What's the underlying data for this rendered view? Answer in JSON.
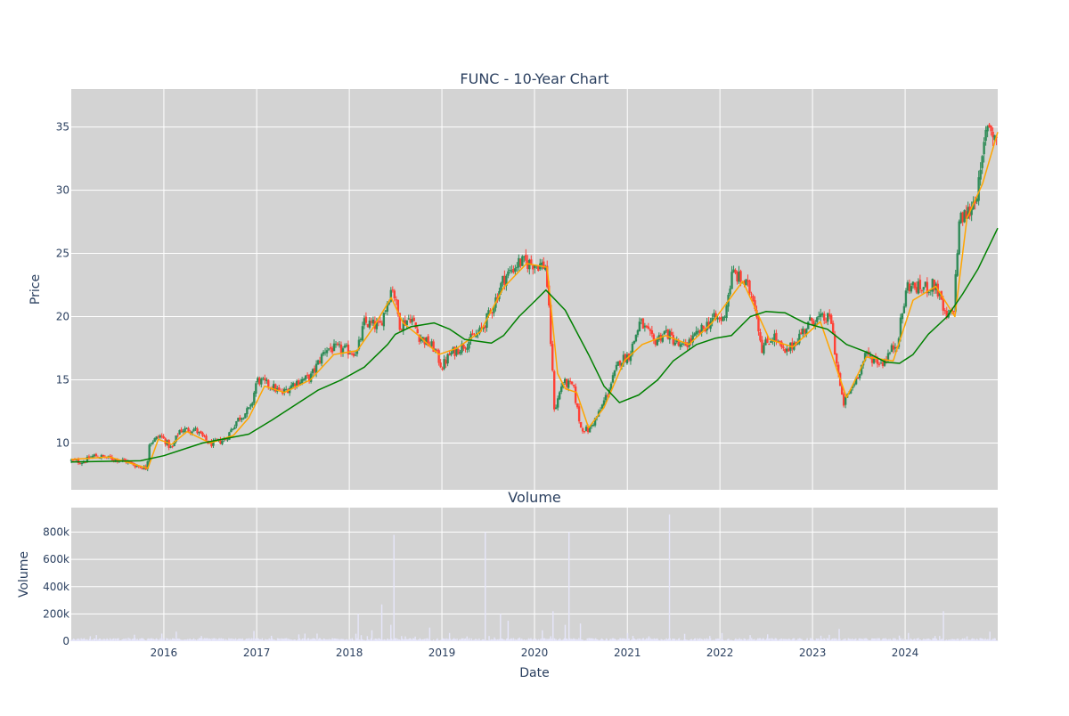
{
  "chart_data": [
    {
      "type": "candlestick",
      "title": "FUNC - 10-Year Chart",
      "xlabel": "",
      "ylabel": "Price",
      "xlim": [
        "2015-01-01",
        "2024-12-31"
      ],
      "ylim": [
        6.3,
        38.0
      ],
      "y_ticks": [
        10,
        15,
        20,
        25,
        30,
        35
      ],
      "x_ticks": [
        {
          "date": "2016-01-01",
          "label": "2016"
        },
        {
          "date": "2017-01-01",
          "label": "2017"
        },
        {
          "date": "2018-01-01",
          "label": "2018"
        },
        {
          "date": "2019-01-01",
          "label": "2019"
        },
        {
          "date": "2020-01-01",
          "label": "2020"
        },
        {
          "date": "2021-01-01",
          "label": "2021"
        },
        {
          "date": "2022-01-01",
          "label": "2022"
        },
        {
          "date": "2023-01-01",
          "label": "2023"
        },
        {
          "date": "2024-01-01",
          "label": "2024"
        }
      ],
      "grid": true,
      "legend": "none",
      "price_anchors": [
        [
          "2015-01-01",
          8.6
        ],
        [
          "2015-02-15",
          8.5
        ],
        [
          "2015-04-01",
          9.0
        ],
        [
          "2015-06-01",
          8.8
        ],
        [
          "2015-08-01",
          8.6
        ],
        [
          "2015-09-15",
          8.2
        ],
        [
          "2015-10-25",
          8.0
        ],
        [
          "2015-11-05",
          10.0
        ],
        [
          "2015-12-20",
          10.6
        ],
        [
          "2016-02-01",
          9.5
        ],
        [
          "2016-03-01",
          11.0
        ],
        [
          "2016-05-01",
          11.1
        ],
        [
          "2016-07-01",
          9.9
        ],
        [
          "2016-09-01",
          10.3
        ],
        [
          "2016-10-15",
          11.8
        ],
        [
          "2016-12-10",
          12.8
        ],
        [
          "2017-01-01",
          15.0
        ],
        [
          "2017-03-01",
          14.5
        ],
        [
          "2017-04-10",
          13.9
        ],
        [
          "2017-06-01",
          14.8
        ],
        [
          "2017-08-01",
          15.2
        ],
        [
          "2017-10-01",
          17.5
        ],
        [
          "2017-12-01",
          17.4
        ],
        [
          "2018-02-01",
          17.2
        ],
        [
          "2018-03-01",
          19.5
        ],
        [
          "2018-05-01",
          19.2
        ],
        [
          "2018-06-20",
          22.5
        ],
        [
          "2018-07-20",
          19.3
        ],
        [
          "2018-09-01",
          20.0
        ],
        [
          "2018-10-01",
          18.5
        ],
        [
          "2018-12-01",
          17.5
        ],
        [
          "2019-01-01",
          16.0
        ],
        [
          "2019-02-01",
          17.0
        ],
        [
          "2019-04-01",
          17.8
        ],
        [
          "2019-06-01",
          18.8
        ],
        [
          "2019-07-15",
          20.5
        ],
        [
          "2019-09-01",
          23.0
        ],
        [
          "2019-11-01",
          24.3
        ],
        [
          "2020-01-01",
          24.2
        ],
        [
          "2020-02-15",
          24.0
        ],
        [
          "2020-03-01",
          19.5
        ],
        [
          "2020-03-20",
          12.5
        ],
        [
          "2020-04-20",
          14.8
        ],
        [
          "2020-06-01",
          14.5
        ],
        [
          "2020-07-01",
          11.2
        ],
        [
          "2020-08-01",
          11.0
        ],
        [
          "2020-09-15",
          12.5
        ],
        [
          "2020-10-25",
          14.5
        ],
        [
          "2020-12-01",
          16.5
        ],
        [
          "2021-01-10",
          17.0
        ],
        [
          "2021-02-20",
          19.6
        ],
        [
          "2021-04-15",
          18.0
        ],
        [
          "2021-06-01",
          18.8
        ],
        [
          "2021-08-01",
          17.5
        ],
        [
          "2021-10-01",
          18.5
        ],
        [
          "2021-12-01",
          19.8
        ],
        [
          "2022-01-15",
          19.8
        ],
        [
          "2022-02-20",
          23.5
        ],
        [
          "2022-04-15",
          22.5
        ],
        [
          "2022-05-15",
          21.5
        ],
        [
          "2022-06-15",
          17.5
        ],
        [
          "2022-08-01",
          18.5
        ],
        [
          "2022-09-15",
          17.0
        ],
        [
          "2022-11-10",
          18.5
        ],
        [
          "2023-01-01",
          19.8
        ],
        [
          "2023-03-15",
          19.8
        ],
        [
          "2023-04-01",
          17.0
        ],
        [
          "2023-05-01",
          13.0
        ],
        [
          "2023-06-15",
          14.8
        ],
        [
          "2023-08-01",
          17.0
        ],
        [
          "2023-10-01",
          16.3
        ],
        [
          "2023-12-01",
          18.0
        ],
        [
          "2024-01-10",
          22.5
        ],
        [
          "2024-03-01",
          22.2
        ],
        [
          "2024-05-01",
          22.5
        ],
        [
          "2024-06-10",
          19.8
        ],
        [
          "2024-07-10",
          20.5
        ],
        [
          "2024-08-01",
          27.5
        ],
        [
          "2024-09-15",
          28.5
        ],
        [
          "2024-10-20",
          30.5
        ],
        [
          "2024-11-20",
          35.5
        ],
        [
          "2024-12-31",
          33.8
        ]
      ],
      "series": [
        {
          "name": "",
          "color": "#ffa500",
          "values": [
            [
              "2015-01-01",
              8.7
            ],
            [
              "2015-06-01",
              8.9
            ],
            [
              "2015-10-30",
              8.0
            ],
            [
              "2015-12-10",
              10.3
            ],
            [
              "2016-02-01",
              9.9
            ],
            [
              "2016-04-01",
              10.9
            ],
            [
              "2016-07-01",
              10.0
            ],
            [
              "2016-10-01",
              10.6
            ],
            [
              "2016-12-01",
              12.0
            ],
            [
              "2017-02-01",
              14.5
            ],
            [
              "2017-04-20",
              14.0
            ],
            [
              "2017-08-01",
              15.0
            ],
            [
              "2017-11-01",
              17.0
            ],
            [
              "2018-02-01",
              17.3
            ],
            [
              "2018-04-01",
              19.0
            ],
            [
              "2018-06-15",
              21.5
            ],
            [
              "2018-08-01",
              19.5
            ],
            [
              "2018-10-01",
              18.5
            ],
            [
              "2018-12-20",
              17.0
            ],
            [
              "2019-03-01",
              17.5
            ],
            [
              "2019-06-01",
              18.8
            ],
            [
              "2019-09-01",
              22.3
            ],
            [
              "2019-12-01",
              24.2
            ],
            [
              "2020-02-20",
              23.9
            ],
            [
              "2020-04-01",
              15.5
            ],
            [
              "2020-05-01",
              14.3
            ],
            [
              "2020-06-15",
              14.0
            ],
            [
              "2020-08-01",
              11.2
            ],
            [
              "2020-10-01",
              12.8
            ],
            [
              "2020-12-20",
              16.5
            ],
            [
              "2021-03-01",
              17.8
            ],
            [
              "2021-06-01",
              18.5
            ],
            [
              "2021-09-01",
              17.8
            ],
            [
              "2021-12-01",
              19.5
            ],
            [
              "2022-04-01",
              22.8
            ],
            [
              "2022-07-15",
              18.2
            ],
            [
              "2022-10-15",
              17.6
            ],
            [
              "2023-02-01",
              19.6
            ],
            [
              "2023-05-15",
              13.6
            ],
            [
              "2023-08-01",
              16.8
            ],
            [
              "2023-11-15",
              16.5
            ],
            [
              "2024-02-01",
              21.3
            ],
            [
              "2024-05-01",
              22.4
            ],
            [
              "2024-07-15",
              20.0
            ],
            [
              "2024-09-01",
              27.8
            ],
            [
              "2024-11-01",
              30.5
            ],
            [
              "2024-12-31",
              34.6
            ]
          ]
        },
        {
          "name": "",
          "color": "#008000",
          "values": [
            [
              "2015-01-01",
              8.5
            ],
            [
              "2015-10-01",
              8.6
            ],
            [
              "2016-01-01",
              9.0
            ],
            [
              "2016-06-01",
              10.0
            ],
            [
              "2016-12-01",
              10.7
            ],
            [
              "2017-03-01",
              11.8
            ],
            [
              "2017-06-01",
              13.0
            ],
            [
              "2017-09-01",
              14.2
            ],
            [
              "2017-12-01",
              15.0
            ],
            [
              "2018-03-01",
              16.0
            ],
            [
              "2018-06-01",
              17.8
            ],
            [
              "2018-07-01",
              18.6
            ],
            [
              "2018-09-01",
              19.2
            ],
            [
              "2018-12-01",
              19.5
            ],
            [
              "2019-02-01",
              19.0
            ],
            [
              "2019-04-01",
              18.2
            ],
            [
              "2019-07-15",
              17.9
            ],
            [
              "2019-09-01",
              18.5
            ],
            [
              "2019-11-01",
              20.0
            ],
            [
              "2020-01-01",
              21.2
            ],
            [
              "2020-02-15",
              22.1
            ],
            [
              "2020-05-01",
              20.5
            ],
            [
              "2020-08-01",
              17.0
            ],
            [
              "2020-10-01",
              14.5
            ],
            [
              "2020-12-01",
              13.2
            ],
            [
              "2021-02-15",
              13.8
            ],
            [
              "2021-05-01",
              15.0
            ],
            [
              "2021-07-01",
              16.5
            ],
            [
              "2021-10-01",
              17.8
            ],
            [
              "2021-12-15",
              18.3
            ],
            [
              "2022-02-15",
              18.5
            ],
            [
              "2022-05-01",
              20.0
            ],
            [
              "2022-07-01",
              20.4
            ],
            [
              "2022-09-15",
              20.3
            ],
            [
              "2022-12-01",
              19.5
            ],
            [
              "2023-03-01",
              19.0
            ],
            [
              "2023-05-15",
              17.8
            ],
            [
              "2023-08-01",
              17.2
            ],
            [
              "2023-10-15",
              16.4
            ],
            [
              "2023-12-10",
              16.3
            ],
            [
              "2024-02-01",
              17.0
            ],
            [
              "2024-04-01",
              18.6
            ],
            [
              "2024-06-15",
              20.0
            ],
            [
              "2024-08-15",
              21.8
            ],
            [
              "2024-10-15",
              23.8
            ],
            [
              "2024-12-31",
              27.0
            ]
          ]
        }
      ]
    },
    {
      "type": "bar",
      "title": "Volume",
      "xlabel": "Date",
      "ylabel": "Volume",
      "xlim": [
        "2015-01-01",
        "2024-12-31"
      ],
      "ylim": [
        0,
        980000
      ],
      "y_ticks": [
        {
          "value": 0,
          "label": "0"
        },
        {
          "value": 200000,
          "label": "200k"
        },
        {
          "value": 400000,
          "label": "400k"
        },
        {
          "value": 600000,
          "label": "600k"
        },
        {
          "value": 800000,
          "label": "800k"
        }
      ],
      "x_ticks": [
        {
          "date": "2016-01-01",
          "label": "2016"
        },
        {
          "date": "2017-01-01",
          "label": "2017"
        },
        {
          "date": "2018-01-01",
          "label": "2018"
        },
        {
          "date": "2019-01-01",
          "label": "2019"
        },
        {
          "date": "2020-01-01",
          "label": "2020"
        },
        {
          "date": "2021-01-01",
          "label": "2021"
        },
        {
          "date": "2022-01-01",
          "label": "2022"
        },
        {
          "date": "2023-01-01",
          "label": "2023"
        },
        {
          "date": "2024-01-01",
          "label": "2024"
        }
      ],
      "grid": true,
      "color": "#e6e6fa",
      "baseline_volume": 12000,
      "spikes": [
        [
          "2015-04-10",
          45000
        ],
        [
          "2016-02-20",
          70000
        ],
        [
          "2016-12-20",
          75000
        ],
        [
          "2017-06-15",
          50000
        ],
        [
          "2018-02-05",
          200000
        ],
        [
          "2018-04-01",
          80000
        ],
        [
          "2018-05-10",
          270000
        ],
        [
          "2018-06-15",
          120000
        ],
        [
          "2018-06-25",
          780000
        ],
        [
          "2018-11-15",
          100000
        ],
        [
          "2019-02-01",
          60000
        ],
        [
          "2019-06-20",
          800000
        ],
        [
          "2019-08-20",
          200000
        ],
        [
          "2019-09-20",
          150000
        ],
        [
          "2020-02-01",
          80000
        ],
        [
          "2020-03-15",
          220000
        ],
        [
          "2020-05-01",
          120000
        ],
        [
          "2020-05-15",
          800000
        ],
        [
          "2020-07-01",
          130000
        ],
        [
          "2021-01-01",
          60000
        ],
        [
          "2021-06-15",
          930000
        ],
        [
          "2022-01-10",
          60000
        ],
        [
          "2022-05-01",
          45000
        ],
        [
          "2023-04-15",
          90000
        ],
        [
          "2024-01-15",
          60000
        ],
        [
          "2024-06-01",
          220000
        ],
        [
          "2024-12-01",
          70000
        ]
      ]
    }
  ]
}
